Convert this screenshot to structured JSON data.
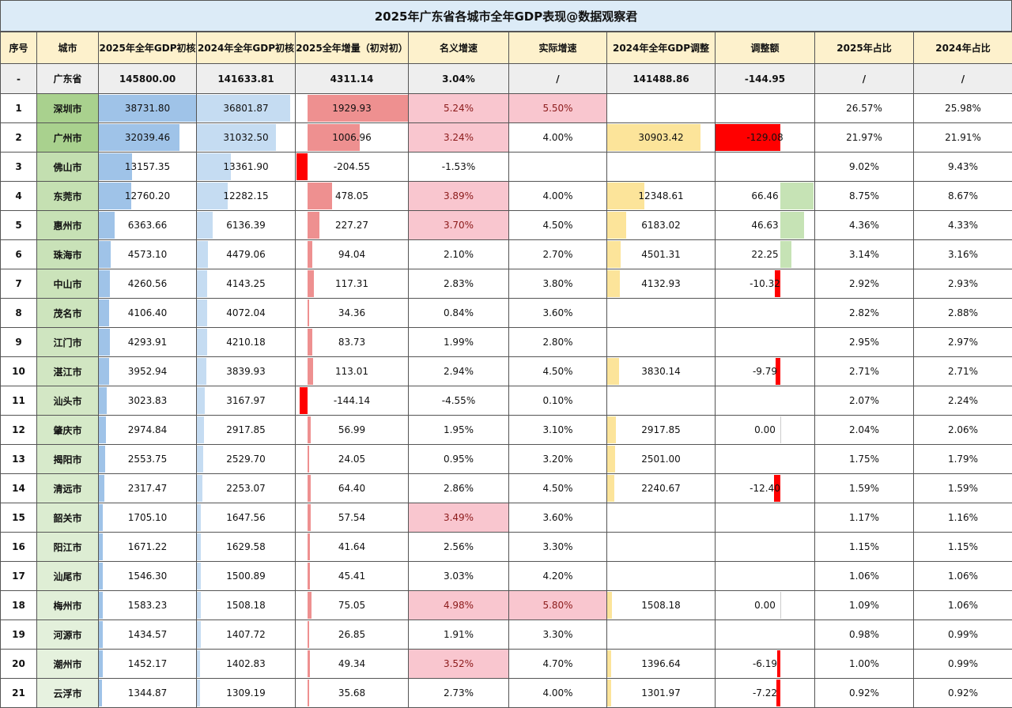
{
  "title": "2025年广东省各城市全年GDP表现@数据观察君",
  "headers": [
    "序号",
    "城市",
    "2025年全年GDP初核",
    "2024年全年GDP初核",
    "2025全年增量（初对初）",
    "名义增速",
    "实际增速",
    "2024年全年GDP调整",
    "调整额",
    "2025年占比",
    "2024年占比"
  ],
  "province": [
    "-",
    "广东省",
    "145800.00",
    "141633.81",
    "4311.14",
    "3.04%",
    "/",
    "141488.86",
    "-144.95",
    "/",
    "/"
  ],
  "colors": {
    "gdp2025_bar": "#9fc3e8",
    "gdp2024_bar": "#c5dcf2",
    "increase_pos": "#ee9090",
    "increase_neg": "#ff0000",
    "highlight": "#f9c6cf",
    "adj_bar": "#fce49a",
    "adj_neg": "#ff0000",
    "adj_pos": "#c6e3b5",
    "city_cell": "#a9d18e",
    "header": "#fdf1cc",
    "title_bg": "#dcebf7"
  },
  "rows": [
    [
      "1",
      "深圳市",
      "38731.80",
      "36801.87",
      "1929.93",
      "5.24%",
      "5.50%",
      "",
      "",
      "26.57%",
      "25.98%"
    ],
    [
      "2",
      "广州市",
      "32039.46",
      "31032.50",
      "1006.96",
      "3.24%",
      "4.00%",
      "30903.42",
      "-129.08",
      "21.97%",
      "21.91%"
    ],
    [
      "3",
      "佛山市",
      "13157.35",
      "13361.90",
      "-204.55",
      "-1.53%",
      "",
      "",
      "",
      "9.02%",
      "9.43%"
    ],
    [
      "4",
      "东莞市",
      "12760.20",
      "12282.15",
      "478.05",
      "3.89%",
      "4.00%",
      "12348.61",
      "66.46",
      "8.75%",
      "8.67%"
    ],
    [
      "5",
      "惠州市",
      "6363.66",
      "6136.39",
      "227.27",
      "3.70%",
      "4.50%",
      "6183.02",
      "46.63",
      "4.36%",
      "4.33%"
    ],
    [
      "6",
      "珠海市",
      "4573.10",
      "4479.06",
      "94.04",
      "2.10%",
      "2.70%",
      "4501.31",
      "22.25",
      "3.14%",
      "3.16%"
    ],
    [
      "7",
      "中山市",
      "4260.56",
      "4143.25",
      "117.31",
      "2.83%",
      "3.80%",
      "4132.93",
      "-10.32",
      "2.92%",
      "2.93%"
    ],
    [
      "8",
      "茂名市",
      "4106.40",
      "4072.04",
      "34.36",
      "0.84%",
      "3.60%",
      "",
      "",
      "2.82%",
      "2.88%"
    ],
    [
      "9",
      "江门市",
      "4293.91",
      "4210.18",
      "83.73",
      "1.99%",
      "2.80%",
      "",
      "",
      "2.95%",
      "2.97%"
    ],
    [
      "10",
      "湛江市",
      "3952.94",
      "3839.93",
      "113.01",
      "2.94%",
      "4.50%",
      "3830.14",
      "-9.79",
      "2.71%",
      "2.71%"
    ],
    [
      "11",
      "汕头市",
      "3023.83",
      "3167.97",
      "-144.14",
      "-4.55%",
      "0.10%",
      "",
      "",
      "2.07%",
      "2.24%"
    ],
    [
      "12",
      "肇庆市",
      "2974.84",
      "2917.85",
      "56.99",
      "1.95%",
      "3.10%",
      "2917.85",
      "0.00",
      "2.04%",
      "2.06%"
    ],
    [
      "13",
      "揭阳市",
      "2553.75",
      "2529.70",
      "24.05",
      "0.95%",
      "3.20%",
      "2501.00",
      "",
      "1.75%",
      "1.79%"
    ],
    [
      "14",
      "清远市",
      "2317.47",
      "2253.07",
      "64.40",
      "2.86%",
      "4.50%",
      "2240.67",
      "-12.40",
      "1.59%",
      "1.59%"
    ],
    [
      "15",
      "韶关市",
      "1705.10",
      "1647.56",
      "57.54",
      "3.49%",
      "3.60%",
      "",
      "",
      "1.17%",
      "1.16%"
    ],
    [
      "16",
      "阳江市",
      "1671.22",
      "1629.58",
      "41.64",
      "2.56%",
      "3.30%",
      "",
      "",
      "1.15%",
      "1.15%"
    ],
    [
      "17",
      "汕尾市",
      "1546.30",
      "1500.89",
      "45.41",
      "3.03%",
      "4.20%",
      "",
      "",
      "1.06%",
      "1.06%"
    ],
    [
      "18",
      "梅州市",
      "1583.23",
      "1508.18",
      "75.05",
      "4.98%",
      "5.80%",
      "1508.18",
      "0.00",
      "1.09%",
      "1.06%"
    ],
    [
      "19",
      "河源市",
      "1434.57",
      "1407.72",
      "26.85",
      "1.91%",
      "3.30%",
      "",
      "",
      "0.98%",
      "0.99%"
    ],
    [
      "20",
      "潮州市",
      "1452.17",
      "1402.83",
      "49.34",
      "3.52%",
      "4.70%",
      "1396.64",
      "-6.19",
      "1.00%",
      "0.99%"
    ],
    [
      "21",
      "云浮市",
      "1344.87",
      "1309.19",
      "35.68",
      "2.73%",
      "4.00%",
      "1301.97",
      "-7.22",
      "0.92%",
      "0.92%"
    ]
  ]
}
